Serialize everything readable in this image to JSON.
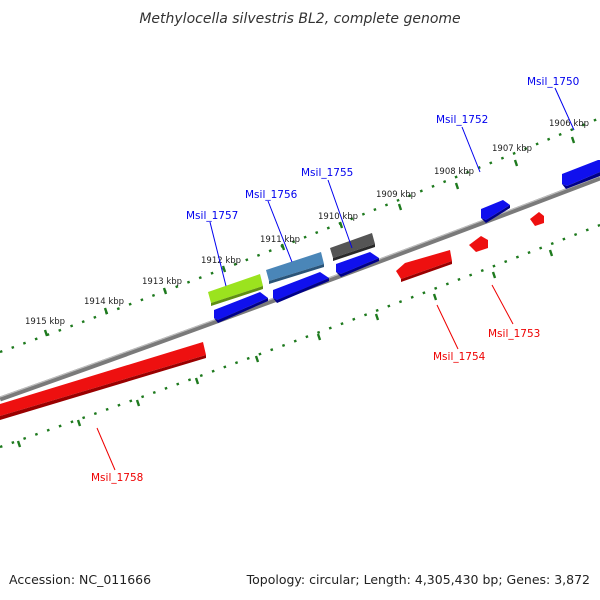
{
  "title": "Methylocella silvestris BL2, complete genome",
  "footer": {
    "accession": "Accession: NC_011666",
    "summary": "Topology: circular; Length: 4,305,430 bp; Genes: 3,872"
  },
  "ticks": [
    {
      "label": "1906 kbp"
    },
    {
      "label": "1907 kbp"
    },
    {
      "label": "1908 kbp"
    },
    {
      "label": "1909 kbp"
    },
    {
      "label": "1910 kbp"
    },
    {
      "label": "1911 kbp"
    },
    {
      "label": "1912 kbp"
    },
    {
      "label": "1913 kbp"
    },
    {
      "label": "1914 kbp"
    },
    {
      "label": "1915 kbp"
    }
  ],
  "genes": [
    {
      "name": "Msil_1750",
      "strand": "+",
      "color": "#0000ee"
    },
    {
      "name": "Msil_1752",
      "strand": "+",
      "color": "#0000ee"
    },
    {
      "name": "Msil_1753",
      "strand": "-",
      "color": "#ee0000"
    },
    {
      "name": "Msil_1754",
      "strand": "-",
      "color": "#ee0000"
    },
    {
      "name": "Msil_1755",
      "strand": "+",
      "color": "#0000ee"
    },
    {
      "name": "Msil_1756",
      "strand": "+",
      "color": "#0000ee"
    },
    {
      "name": "Msil_1757",
      "strand": "+",
      "color": "#0000ee"
    },
    {
      "name": "Msil_1758",
      "strand": "-",
      "color": "#ee0000"
    }
  ],
  "colors": {
    "backbone": "#7a7a7a",
    "tick": "#1e7a1e",
    "plus_strand": "#1010ee",
    "minus_strand": "#ee1010",
    "feature_green": "#9be31e",
    "feature_steelblue": "#4a86b8",
    "feature_gray": "#555555"
  }
}
